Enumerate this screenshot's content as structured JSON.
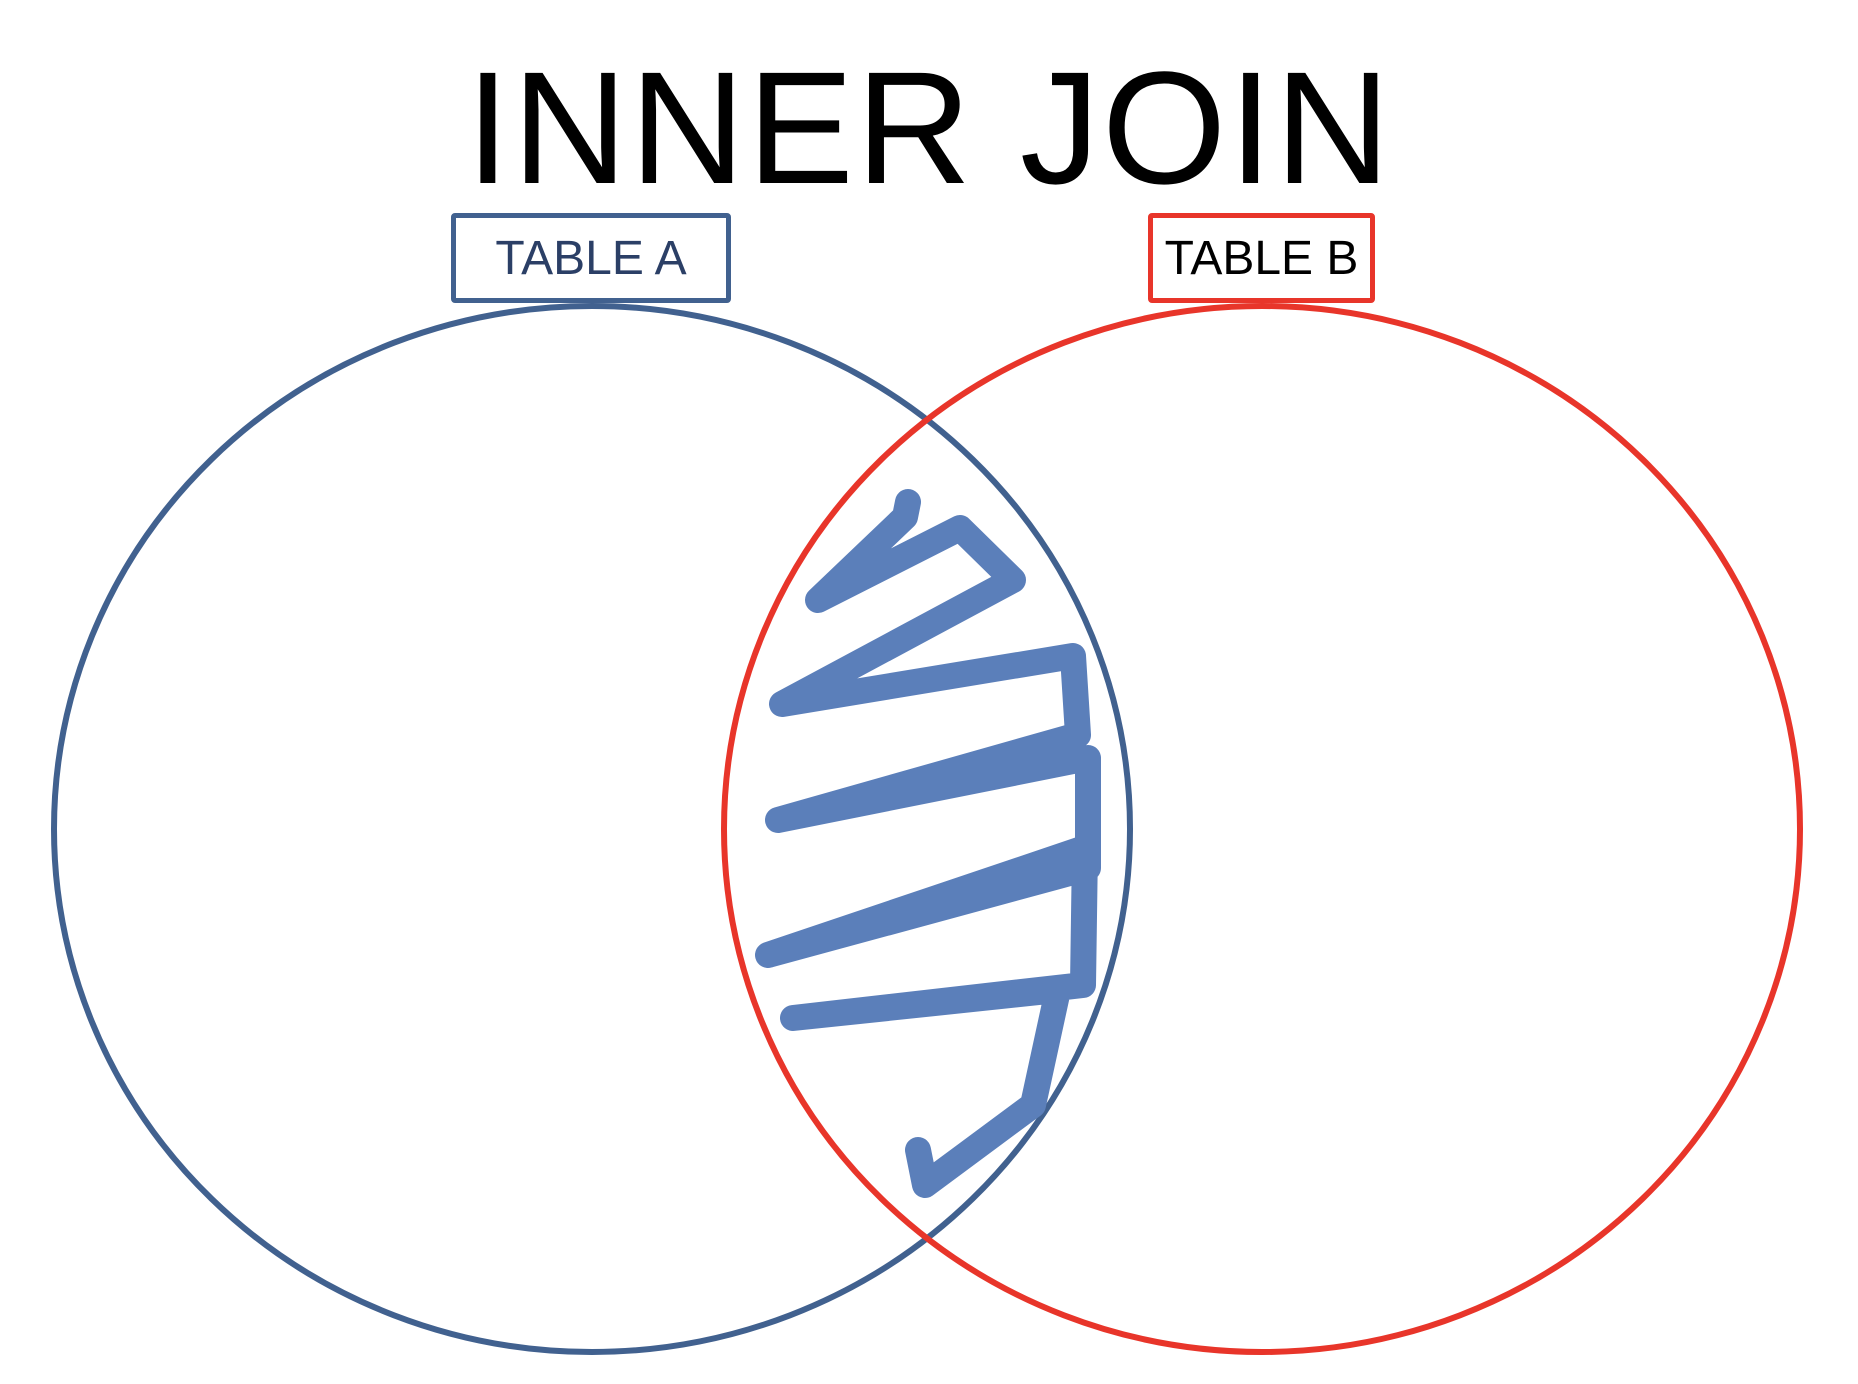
{
  "diagram": {
    "title": "INNER JOIN",
    "left_set": {
      "label": "TABLE A",
      "color": "#41618f"
    },
    "right_set": {
      "label": "TABLE B",
      "color": "#e8352a"
    },
    "highlight": {
      "region": "intersection",
      "style": "scribble",
      "color": "#5b7fba"
    }
  }
}
